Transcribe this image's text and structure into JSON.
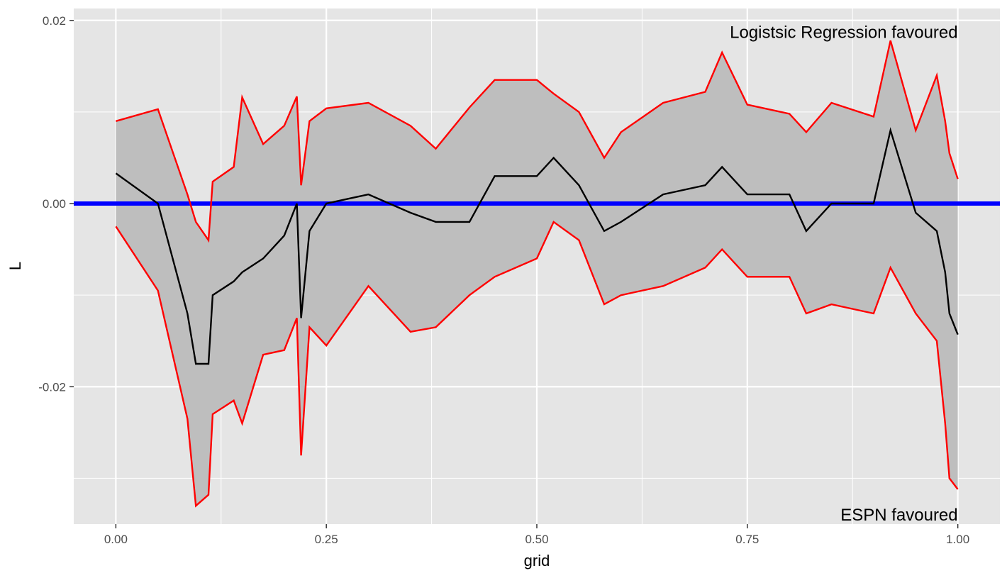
{
  "chart_data": {
    "type": "line",
    "title": "",
    "xlabel": "grid",
    "ylabel": "L",
    "xlim": [
      -0.05,
      1.05
    ],
    "ylim": [
      -0.035,
      0.0213
    ],
    "x_ticks": [
      0,
      0.25,
      0.5,
      0.75,
      1
    ],
    "x_tick_labels": [
      "0.00",
      "0.25",
      "0.50",
      "0.75",
      "1.00"
    ],
    "y_ticks": [
      -0.02,
      0,
      0.02
    ],
    "y_tick_labels": [
      "-0.02",
      "0.00",
      "0.02"
    ],
    "grid": true,
    "annotations": [
      {
        "text": "Logistsic Regression favoured",
        "x": 1.0,
        "y": 0.0188
      },
      {
        "text": "ESPN favoured",
        "x": 1.0,
        "y": -0.0339
      }
    ],
    "reference_line": {
      "y": 0,
      "color": "#0000ff"
    },
    "colors": {
      "estimate": "#000000",
      "bounds": "#ff0000",
      "band": "#bebebe",
      "panel": "#e5e5e5",
      "grid": "#ffffff"
    },
    "x": [
      0.0,
      0.05,
      0.085,
      0.095,
      0.11,
      0.115,
      0.14,
      0.15,
      0.175,
      0.2,
      0.215,
      0.22,
      0.23,
      0.25,
      0.3,
      0.35,
      0.38,
      0.42,
      0.45,
      0.5,
      0.52,
      0.55,
      0.58,
      0.6,
      0.65,
      0.7,
      0.72,
      0.75,
      0.8,
      0.82,
      0.85,
      0.9,
      0.92,
      0.95,
      0.975,
      0.985,
      0.99,
      1.0
    ],
    "series": [
      {
        "values": [
          0.0033,
          0.0,
          -0.012,
          -0.0175,
          -0.0175,
          -0.01,
          -0.0085,
          -0.0075,
          -0.006,
          -0.0035,
          0.0,
          -0.0125,
          -0.003,
          0.0,
          0.001,
          -0.001,
          -0.002,
          -0.002,
          0.003,
          0.003,
          0.005,
          0.002,
          -0.003,
          -0.002,
          0.001,
          0.002,
          0.004,
          0.001,
          0.001,
          -0.003,
          0.0,
          0.0,
          0.008,
          -0.001,
          -0.003,
          -0.0075,
          -0.012,
          -0.0143
        ]
      },
      {
        "values": [
          -0.0025,
          -0.0095,
          -0.0235,
          -0.033,
          -0.0318,
          -0.023,
          -0.0215,
          -0.024,
          -0.0165,
          -0.016,
          -0.0125,
          -0.0275,
          -0.0135,
          -0.0155,
          -0.009,
          -0.014,
          -0.0135,
          -0.01,
          -0.008,
          -0.006,
          -0.002,
          -0.004,
          -0.011,
          -0.01,
          -0.009,
          -0.007,
          -0.005,
          -0.008,
          -0.008,
          -0.012,
          -0.011,
          -0.012,
          -0.007,
          -0.012,
          -0.015,
          -0.024,
          -0.03,
          -0.0312
        ]
      },
      {
        "values": [
          0.009,
          0.0103,
          0.001,
          -0.002,
          -0.004,
          0.0024,
          0.004,
          0.0116,
          0.0065,
          0.0085,
          0.0117,
          0.002,
          0.009,
          0.0104,
          0.011,
          0.0085,
          0.006,
          0.0105,
          0.0135,
          0.0135,
          0.012,
          0.01,
          0.005,
          0.0078,
          0.011,
          0.0122,
          0.0165,
          0.0108,
          0.0098,
          0.0078,
          0.011,
          0.0095,
          0.0178,
          0.008,
          0.014,
          0.009,
          0.0055,
          0.0027
        ]
      }
    ]
  }
}
